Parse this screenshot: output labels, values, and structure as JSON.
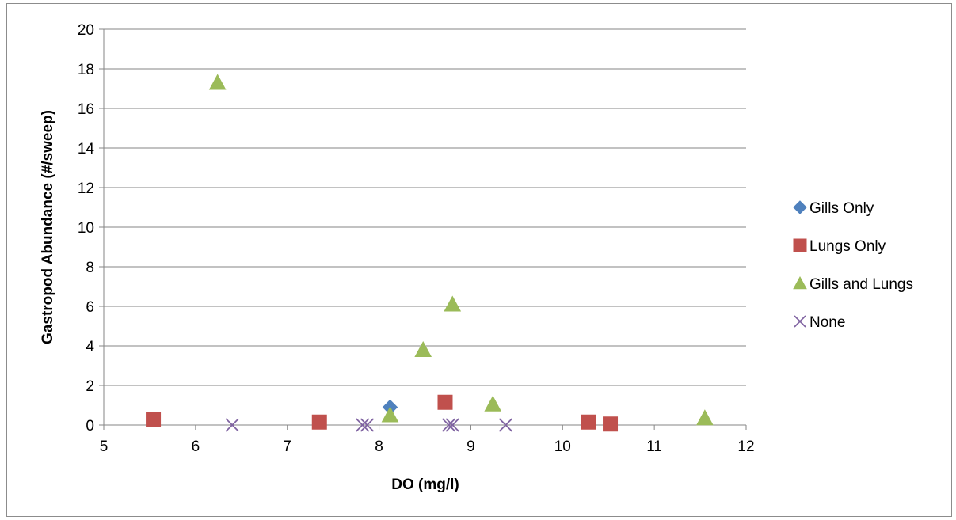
{
  "chart_data": {
    "type": "scatter",
    "title": "",
    "xlabel": "DO (mg/l)",
    "ylabel": "Gastropod Abundance (#/sweep)",
    "xlim": [
      5,
      12
    ],
    "ylim": [
      0,
      20
    ],
    "xticks": [
      5,
      6,
      7,
      8,
      9,
      10,
      11,
      12
    ],
    "yticks": [
      0,
      2,
      4,
      6,
      8,
      10,
      12,
      14,
      16,
      18,
      20
    ],
    "grid": "horizontal",
    "legend_position": "right",
    "series": [
      {
        "name": "Gills Only",
        "marker": "diamond",
        "color": "#4f81bd",
        "points": [
          [
            8.12,
            0.9
          ]
        ]
      },
      {
        "name": "Lungs Only",
        "marker": "square",
        "color": "#c0504d",
        "points": [
          [
            5.54,
            0.3
          ],
          [
            7.35,
            0.15
          ],
          [
            8.72,
            1.15
          ],
          [
            10.28,
            0.15
          ],
          [
            10.52,
            0.05
          ]
        ]
      },
      {
        "name": "Gills and Lungs",
        "marker": "triangle",
        "color": "#9bbb59",
        "points": [
          [
            6.24,
            17.3
          ],
          [
            8.12,
            0.5
          ],
          [
            8.48,
            3.8
          ],
          [
            8.8,
            6.1
          ],
          [
            9.24,
            1.05
          ],
          [
            11.55,
            0.35
          ]
        ]
      },
      {
        "name": "None",
        "marker": "x",
        "color": "#8064a2",
        "points": [
          [
            6.4,
            0
          ],
          [
            7.82,
            0
          ],
          [
            7.87,
            0
          ],
          [
            8.76,
            0
          ],
          [
            8.8,
            0
          ],
          [
            9.38,
            0
          ]
        ]
      }
    ]
  }
}
